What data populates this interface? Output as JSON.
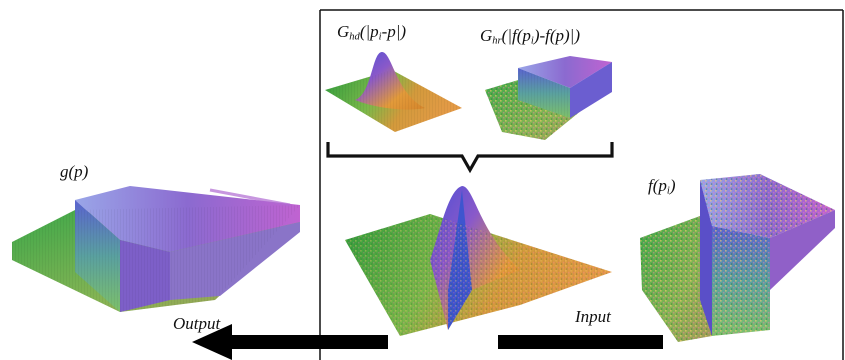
{
  "labels": {
    "gauss_kernel": {
      "prefix": "G",
      "sub": "hd",
      "rest": "(|p",
      "sub2": "i",
      "tail": "-p|)"
    },
    "range_kernel": {
      "prefix": "G",
      "sub": "hr",
      "rest": "(|f(p",
      "sub2": "i",
      "tail": ")-f(p)|)"
    },
    "output_fn": "g(p)",
    "input_fn": {
      "prefix": "f(p",
      "sub": "i",
      "tail": ")"
    },
    "output_word": "Output",
    "input_word": "Input"
  },
  "colors": {
    "frame": "#111111",
    "arrow": "#000000",
    "green": "#3fae3a",
    "orange": "#d98a2b",
    "purple": "#8a4fd0",
    "blue": "#3b5fd6",
    "magenta": "#c653c9"
  },
  "icons": [
    "bracket-brace",
    "arrow-left"
  ]
}
